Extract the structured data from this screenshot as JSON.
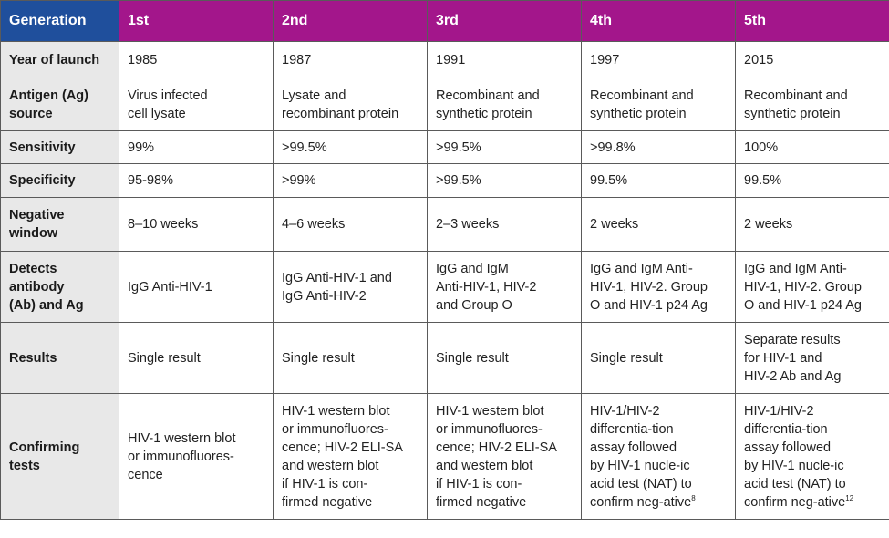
{
  "table": {
    "header": [
      "Generation",
      "1st",
      "2nd",
      "3rd",
      "4th",
      "5th"
    ],
    "rows": [
      [
        "Year of launch",
        "1985",
        "1987",
        "1991",
        "1997",
        "2015"
      ],
      [
        "Antigen (Ag)\nsource",
        "Virus infected\ncell lysate",
        "Lysate and\nrecombinant protein",
        "Recombinant and\nsynthetic protein",
        "Recombinant and\nsynthetic protein",
        "Recombinant and\nsynthetic protein"
      ],
      [
        "Sensitivity",
        "99%",
        ">99.5%",
        ">99.5%",
        ">99.8%",
        "100%"
      ],
      [
        "Specificity",
        "95-98%",
        ">99%",
        ">99.5%",
        "99.5%",
        "99.5%"
      ],
      [
        "Negative\nwindow",
        "8–10 weeks",
        "4–6 weeks",
        "2–3 weeks",
        "2 weeks",
        "2 weeks"
      ],
      [
        "Detects\nantibody\n(Ab) and Ag",
        "IgG Anti-HIV-1",
        "IgG Anti-HIV-1 and\nIgG Anti-HIV-2",
        "IgG and IgM\nAnti-HIV-1, HIV-2\nand Group O",
        "IgG and IgM Anti-\nHIV-1, HIV-2. Group\nO and HIV-1 p24 Ag",
        "IgG and IgM Anti-\nHIV-1, HIV-2. Group\nO and HIV-1 p24 Ag"
      ],
      [
        "Results",
        "Single result",
        "Single result",
        "Single result",
        "Single result",
        "Separate results\nfor HIV-1 and\nHIV-2 Ab and Ag"
      ],
      [
        "Confirming\ntests",
        "HIV-1 western blot\nor immunofluores-\ncence",
        "HIV-1 western blot\nor immunofluores-\ncence; HIV-2 ELI-SA\nand western blot\nif HIV-1 is con-\nfirmed negative",
        "HIV-1 western blot\nor immunofluores-\ncence; HIV-2 ELI-SA\nand western blot\nif HIV-1 is con-\nfirmed negative",
        {
          "text": "HIV-1/HIV-2\ndifferentia-tion\nassay followed\nby HIV-1 nucle-ic\nacid test (NAT) to\nconfirm neg-ative",
          "sup": "8"
        },
        {
          "text": "HIV-1/HIV-2\ndifferentia-tion\nassay followed\nby HIV-1 nucle-ic\nacid test (NAT) to\nconfirm neg-ative",
          "sup": "12"
        }
      ]
    ]
  }
}
